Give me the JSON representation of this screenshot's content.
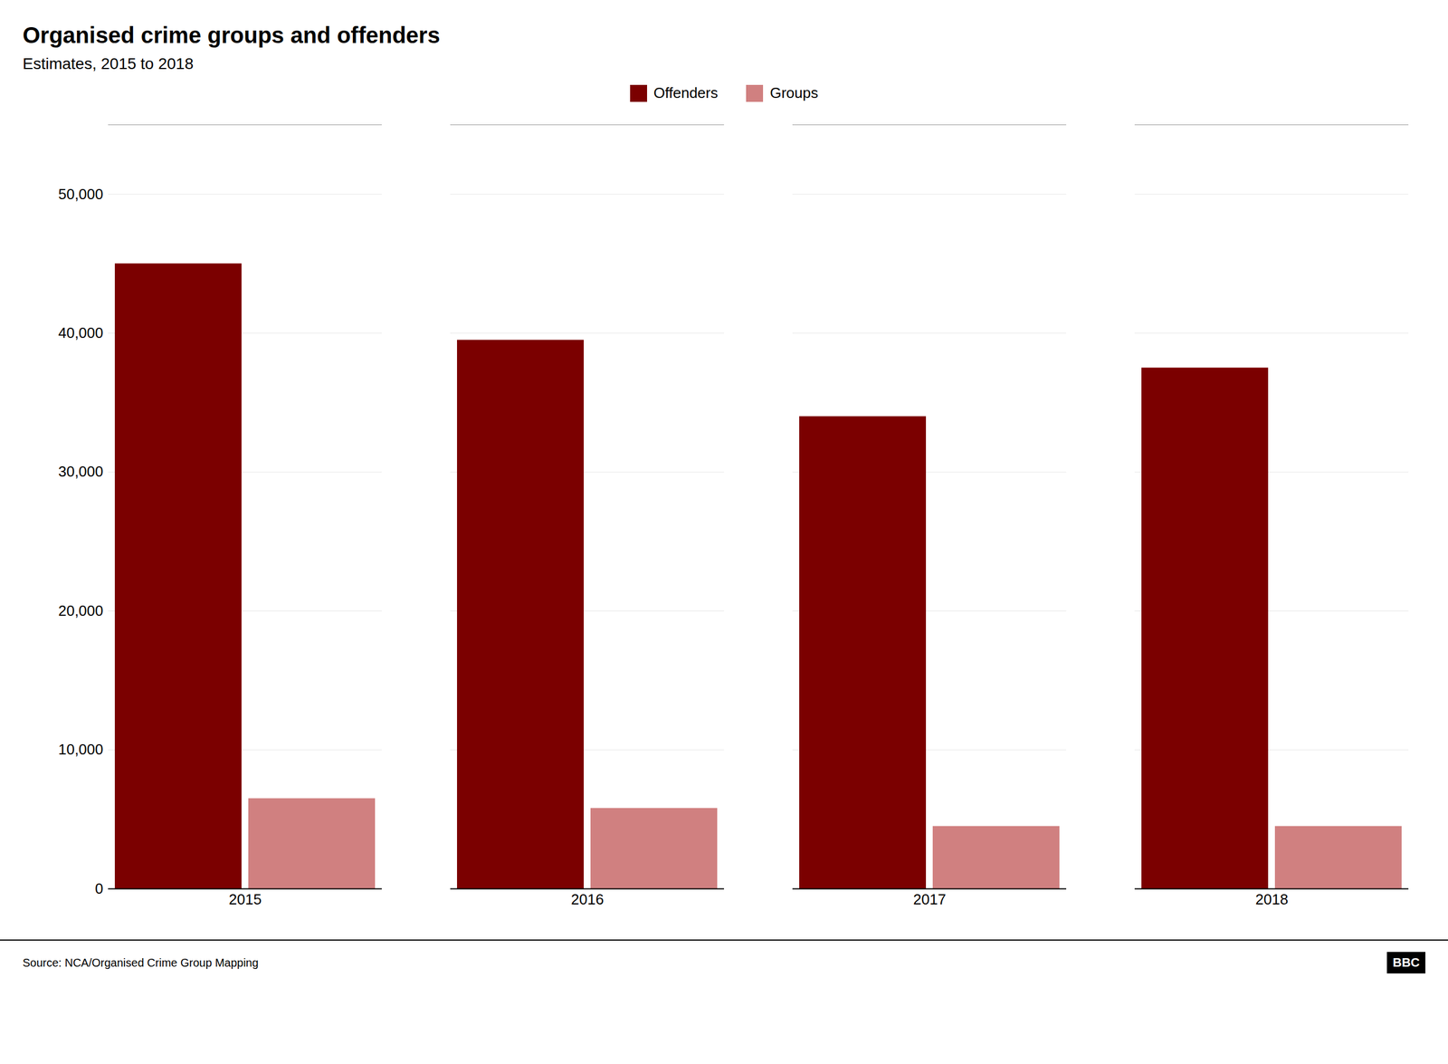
{
  "chart_data": {
    "type": "bar",
    "title": "Organised crime groups and offenders",
    "subtitle": "Estimates, 2015 to 2018",
    "annotations": [
      "Source: NCA/Organised Crime Group Mapping",
      "BBC"
    ],
    "categories": [
      "2015",
      "2016",
      "2017",
      "2018"
    ],
    "series": [
      {
        "name": "Offenders",
        "color": "#7B0000",
        "values": [
          45000,
          39500,
          34000,
          37500
        ]
      },
      {
        "name": "Groups",
        "color": "#D08080",
        "values": [
          6500,
          5800,
          4500,
          4500
        ]
      }
    ],
    "ylim": [
      0,
      55000
    ],
    "yticks": [
      0,
      {
        "value": 10000,
        "label": "10,000"
      },
      {
        "value": 20000,
        "label": "20,000"
      },
      {
        "value": 30000,
        "label": "30,000"
      },
      {
        "value": 40000,
        "label": "40,000"
      },
      {
        "value": 50000,
        "label": "50,000"
      }
    ],
    "grid": true,
    "legend": "top"
  }
}
